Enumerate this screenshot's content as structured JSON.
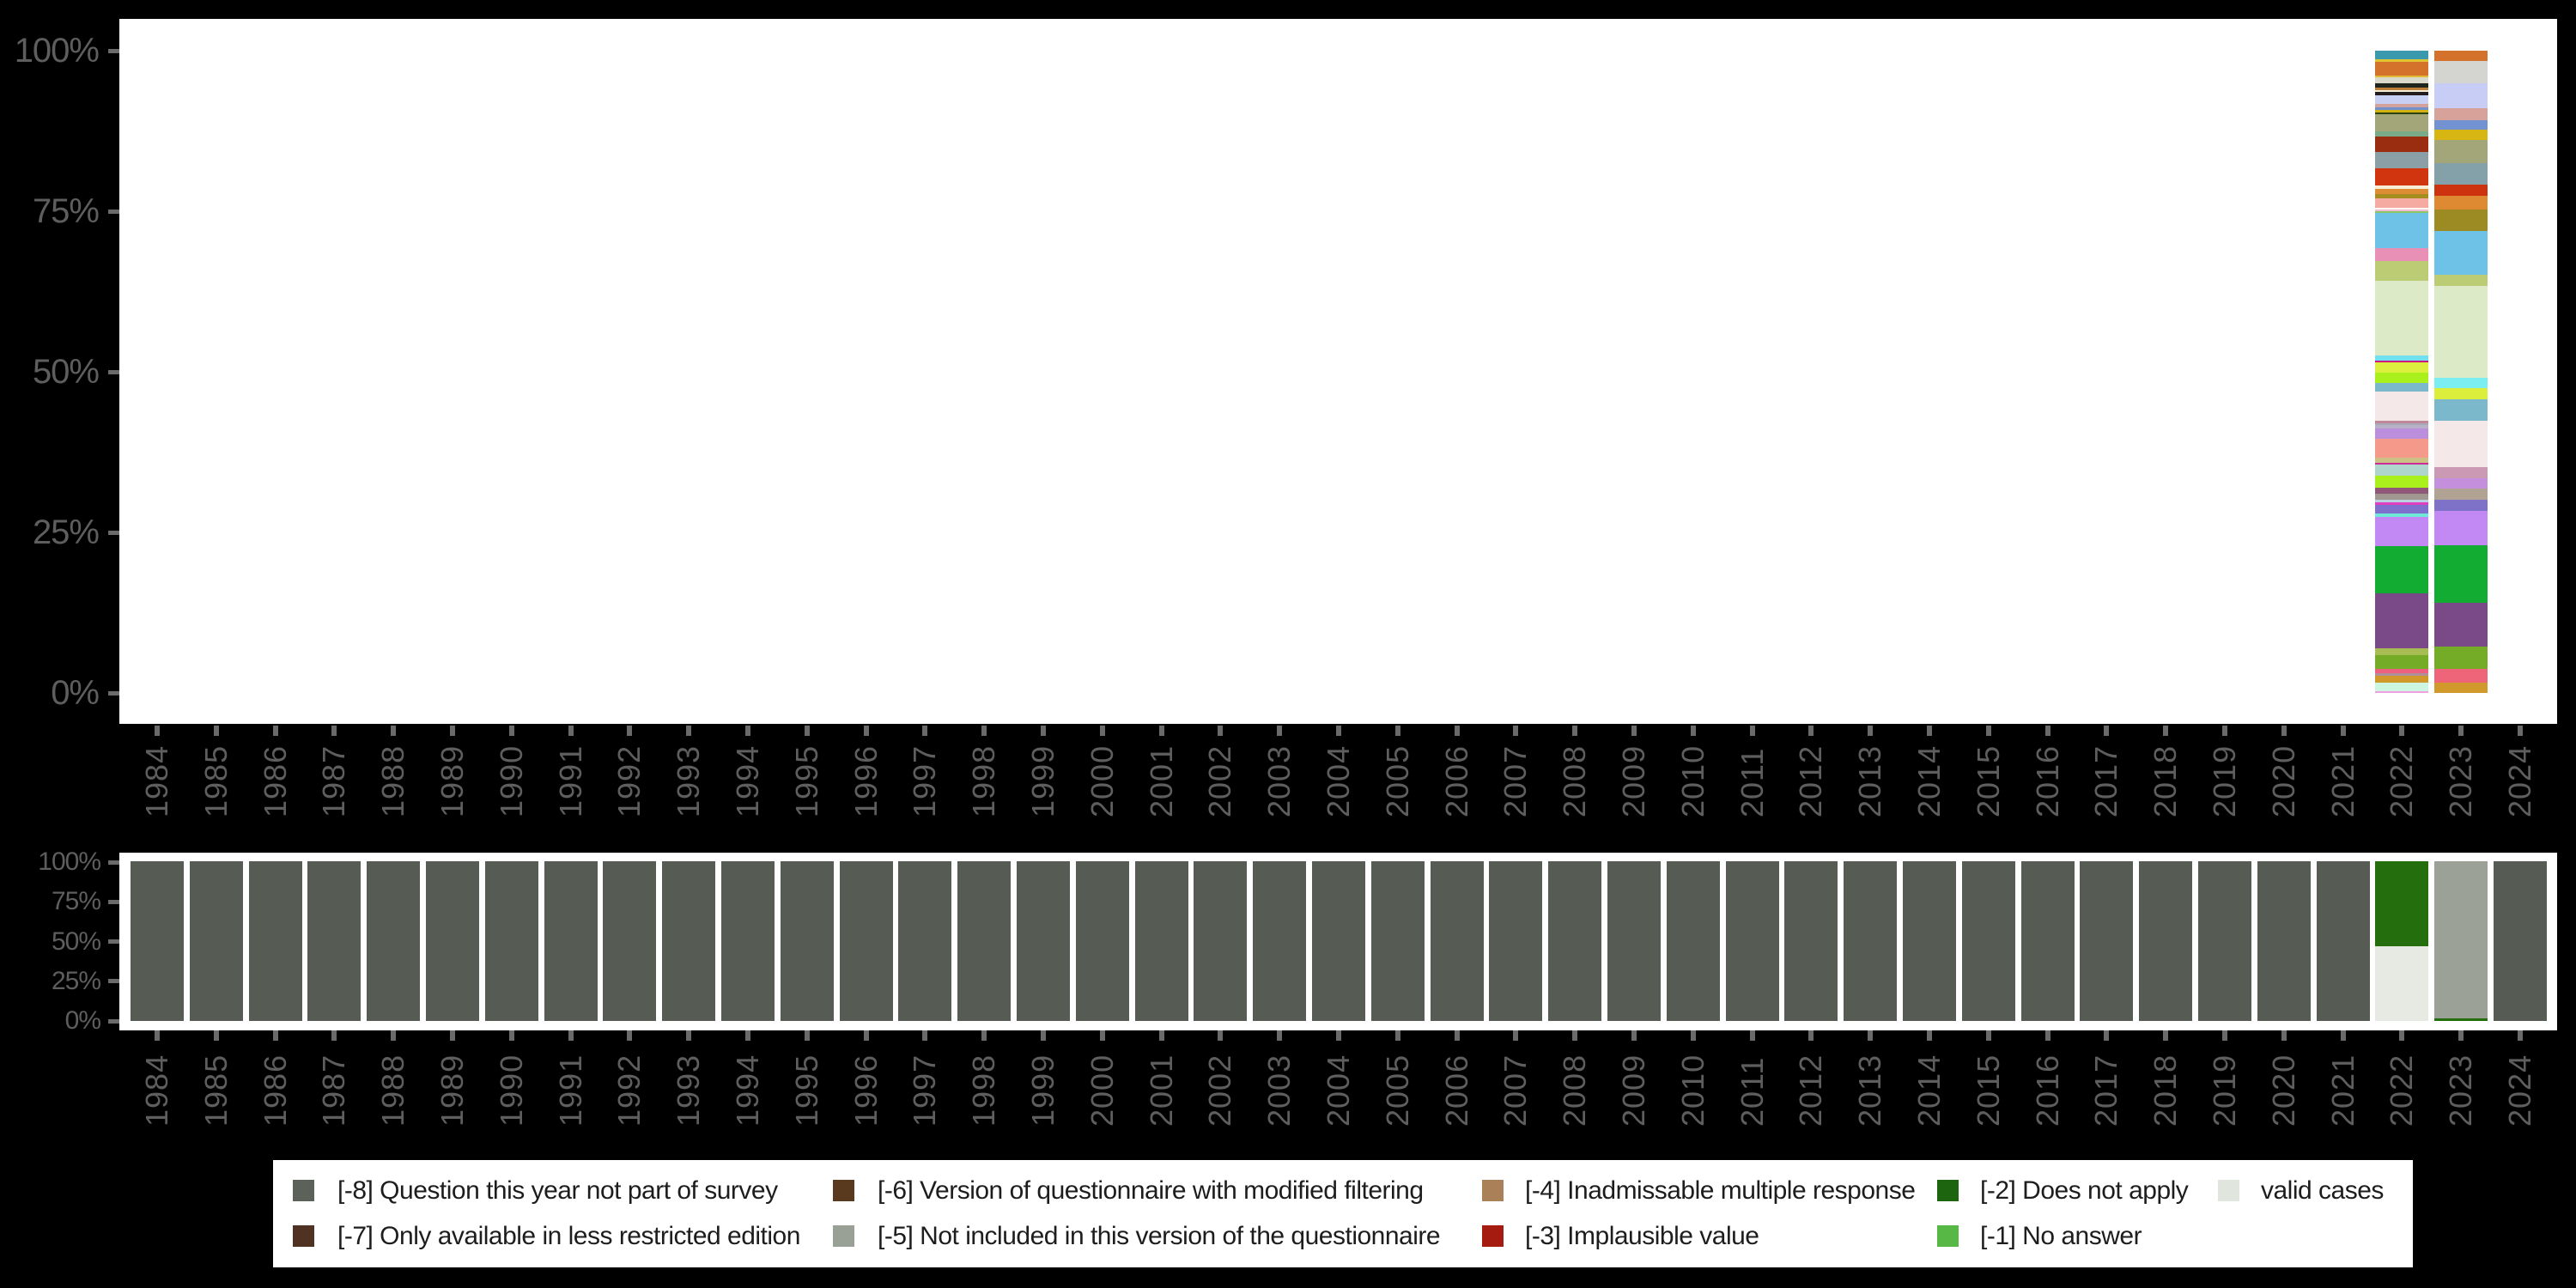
{
  "years": [
    "1984",
    "1985",
    "1986",
    "1987",
    "1988",
    "1989",
    "1990",
    "1991",
    "1992",
    "1993",
    "1994",
    "1995",
    "1996",
    "1997",
    "1998",
    "1999",
    "2000",
    "2001",
    "2002",
    "2003",
    "2004",
    "2005",
    "2006",
    "2007",
    "2008",
    "2009",
    "2010",
    "2011",
    "2012",
    "2013",
    "2014",
    "2015",
    "2016",
    "2017",
    "2018",
    "2019",
    "2020",
    "2021",
    "2022",
    "2023",
    "2024"
  ],
  "chart_data": [
    {
      "type": "bar",
      "stacking": "percent",
      "title": "",
      "xlabel": "",
      "ylabel": "",
      "x_categories": [
        "1984",
        "1985",
        "1986",
        "1987",
        "1988",
        "1989",
        "1990",
        "1991",
        "1992",
        "1993",
        "1994",
        "1995",
        "1996",
        "1997",
        "1998",
        "1999",
        "2000",
        "2001",
        "2002",
        "2003",
        "2004",
        "2005",
        "2006",
        "2007",
        "2008",
        "2009",
        "2010",
        "2011",
        "2012",
        "2013",
        "2014",
        "2015",
        "2016",
        "2017",
        "2018",
        "2019",
        "2020",
        "2021",
        "2022",
        "2023",
        "2024"
      ],
      "y_ticks": [
        "0%",
        "25%",
        "50%",
        "75%",
        "100%"
      ],
      "ylim": [
        0,
        100
      ],
      "grid": false,
      "note": "top panel: value distribution; only 2022 and 2023 contain data; segments listed top-to-bottom as [color, percent]",
      "bars": [
        {
          "year": "2022",
          "segments": [
            [
              "#3a99ac",
              1.4
            ],
            [
              "#e0c431",
              0.31
            ],
            [
              "#d4722c",
              2.23
            ],
            [
              "#e3ba36",
              0.27
            ],
            [
              "#d9d9cc",
              0.89
            ],
            [
              "#20261e",
              0.62
            ],
            [
              "#bc7e34",
              0.45
            ],
            [
              "#f3edda",
              0.27
            ],
            [
              "#241d1d",
              0.53
            ],
            [
              "#c7cff2",
              1.34
            ],
            [
              "#d2a29a",
              0.53
            ],
            [
              "#7090d0",
              0.45
            ],
            [
              "#d2b212",
              0.36
            ],
            [
              "#2c450e",
              0.27
            ],
            [
              "#a2a678",
              2.67
            ],
            [
              "#7aab89",
              0.88
            ],
            [
              "#9a2c10",
              2.32
            ],
            [
              "#8aa0a6",
              2.54
            ],
            [
              "#d1350f",
              2.76
            ],
            [
              "#f8eed8",
              0.45
            ],
            [
              "#dd8d34",
              0.88
            ],
            [
              "#a68d1f",
              0.67
            ],
            [
              "#f5aaa2",
              1.47
            ],
            [
              "#fdfbf1",
              0.22
            ],
            [
              "#eebad6",
              0.31
            ],
            [
              "#8cc665",
              0.22
            ],
            [
              "#6fc2e7",
              5.48
            ],
            [
              "#e890b5",
              2.1
            ],
            [
              "#bccc74",
              3.0
            ],
            [
              "#dceac8",
              11.71
            ],
            [
              "#70e0f0",
              0.76
            ],
            [
              "#cc0a84",
              0.27
            ],
            [
              "#dcee3e",
              1.65
            ],
            [
              "#aaf01c",
              1.66
            ],
            [
              "#7cb8cc",
              1.24
            ],
            [
              "#f5e8e8",
              4.68
            ],
            [
              "#c08898",
              0.31
            ],
            [
              "#a8a8b8",
              0.36
            ],
            [
              "#b8b0c8",
              0.53
            ],
            [
              "#bb8fdc",
              1.6
            ],
            [
              "#f59a8b",
              2.85
            ],
            [
              "#ccc084",
              0.8
            ],
            [
              "#cc2a94",
              0.27
            ],
            [
              "#aed6cc",
              1.74
            ],
            [
              "#aaf01c",
              1.93
            ],
            [
              "#8f5878",
              0.89
            ],
            [
              "#a09890",
              0.98
            ],
            [
              "#b8d0e0",
              0.45
            ],
            [
              "#e040c0",
              0.36
            ],
            [
              "#7e70cc",
              1.4
            ],
            [
              "#70e8d8",
              0.53
            ],
            [
              "#c289f5",
              4.46
            ],
            [
              "#12ac32",
              7.49
            ],
            [
              "#7a4a88",
              8.56
            ],
            [
              "#a8bc54",
              1.02
            ],
            [
              "#74ac28",
              2.1
            ],
            [
              "#ee6080",
              0.71
            ],
            [
              "#b09098",
              0.45
            ],
            [
              "#d1992b",
              0.98
            ],
            [
              "#ccf5e2",
              1.34
            ],
            [
              "#f0a0e0",
              0.27
            ]
          ]
        },
        {
          "year": "2023",
          "segments": [
            [
              "#d4722c",
              1.6
            ],
            [
              "#d4d4d0",
              3.48
            ],
            [
              "#c7cdf4",
              3.88
            ],
            [
              "#d6a29a",
              1.91
            ],
            [
              "#7292d2",
              1.43
            ],
            [
              "#d7b512",
              1.55
            ],
            [
              "#a2a678",
              3.7
            ],
            [
              "#84a0a8",
              3.3
            ],
            [
              "#cc330e",
              1.69
            ],
            [
              "#dd8a33",
              2.14
            ],
            [
              "#9b8b22",
              3.34
            ],
            [
              "#6fc2e7",
              6.82
            ],
            [
              "#bccc74",
              1.78
            ],
            [
              "#dceac8",
              14.27
            ],
            [
              "#7beef2",
              1.65
            ],
            [
              "#dcee3c",
              1.65
            ],
            [
              "#7cb8cc",
              3.39
            ],
            [
              "#f5e8e8",
              7.22
            ],
            [
              "#cc99b5",
              1.7
            ],
            [
              "#c48fdc",
              1.65
            ],
            [
              "#b0a394",
              1.65
            ],
            [
              "#7e72c8",
              1.79
            ],
            [
              "#c289f5",
              5.26
            ],
            [
              "#12ac32",
              9.0
            ],
            [
              "#7a4a88",
              6.82
            ],
            [
              "#74ac28",
              3.44
            ],
            [
              "#ee6478",
              2.14
            ],
            [
              "#d1992b",
              1.6
            ]
          ]
        }
      ]
    },
    {
      "type": "bar",
      "stacking": "percent",
      "title": "",
      "xlabel": "",
      "ylabel": "",
      "x_categories": [
        "1984",
        "1985",
        "1986",
        "1987",
        "1988",
        "1989",
        "1990",
        "1991",
        "1992",
        "1993",
        "1994",
        "1995",
        "1996",
        "1997",
        "1998",
        "1999",
        "2000",
        "2001",
        "2002",
        "2003",
        "2004",
        "2005",
        "2006",
        "2007",
        "2008",
        "2009",
        "2010",
        "2011",
        "2012",
        "2013",
        "2014",
        "2015",
        "2016",
        "2017",
        "2018",
        "2019",
        "2020",
        "2021",
        "2022",
        "2023",
        "2024"
      ],
      "y_ticks": [
        "0%",
        "25%",
        "50%",
        "75%",
        "100%"
      ],
      "ylim": [
        0,
        100
      ],
      "grid": false,
      "note": "bottom panel: missing-data status per year; all years 100% '[-8] Question this year not part of survey' except 2022 and 2023",
      "default_segments": [
        {
          "color": "#565b53",
          "label": "[-8] Question this year not part of survey",
          "pct": 100
        }
      ],
      "overrides": {
        "2022": [
          {
            "color": "#256e0d",
            "label": "[-2] Does not apply",
            "pct": 53.0
          },
          {
            "color": "#e7eae2",
            "label": "valid cases",
            "pct": 47.0
          }
        ],
        "2023": [
          {
            "color": "#9ba197",
            "label": "[-5] Not included in this version of the questionnaire",
            "pct": 98.4
          },
          {
            "color": "#256e0d",
            "label": "[-2] Does not apply",
            "pct": 1.6
          }
        ]
      }
    }
  ],
  "top_axis": {
    "y_tick_labels": [
      "100%",
      "75%",
      "50%",
      "25%",
      "0%"
    ]
  },
  "bottom_axis": {
    "y_tick_labels": [
      "100%",
      "75%",
      "50%",
      "25%",
      "0%"
    ]
  },
  "legend": {
    "background": "#ffffff",
    "items": [
      {
        "row": 0,
        "col": 0,
        "color": "#5c625a",
        "label": "[-8] Question this year not part of survey"
      },
      {
        "row": 1,
        "col": 0,
        "color": "#4f3222",
        "label": "[-7] Only available in less restricted edition"
      },
      {
        "row": 0,
        "col": 1,
        "color": "#593a1e",
        "label": "[-6] Version of questionnaire with modified filtering"
      },
      {
        "row": 1,
        "col": 1,
        "color": "#99a096",
        "label": "[-5] Not included in this version of the questionnaire"
      },
      {
        "row": 0,
        "col": 2,
        "color": "#a98058",
        "label": "[-4] Inadmissable multiple response"
      },
      {
        "row": 1,
        "col": 2,
        "color": "#a51b10",
        "label": "[-3] Implausible value"
      },
      {
        "row": 0,
        "col": 3,
        "color": "#1d660f",
        "label": "[-2] Does not apply"
      },
      {
        "row": 1,
        "col": 3,
        "color": "#57b845",
        "label": "[-1] No answer"
      },
      {
        "row": 0,
        "col": 4,
        "color": "#e0e5dd",
        "label": "valid cases"
      }
    ]
  },
  "colors": {
    "background": "#000000",
    "plot_background": "#ffffff",
    "axis_text": "#5e5e5e",
    "tick": "#6a6a6a",
    "legend_text": "#1d1d1d"
  }
}
